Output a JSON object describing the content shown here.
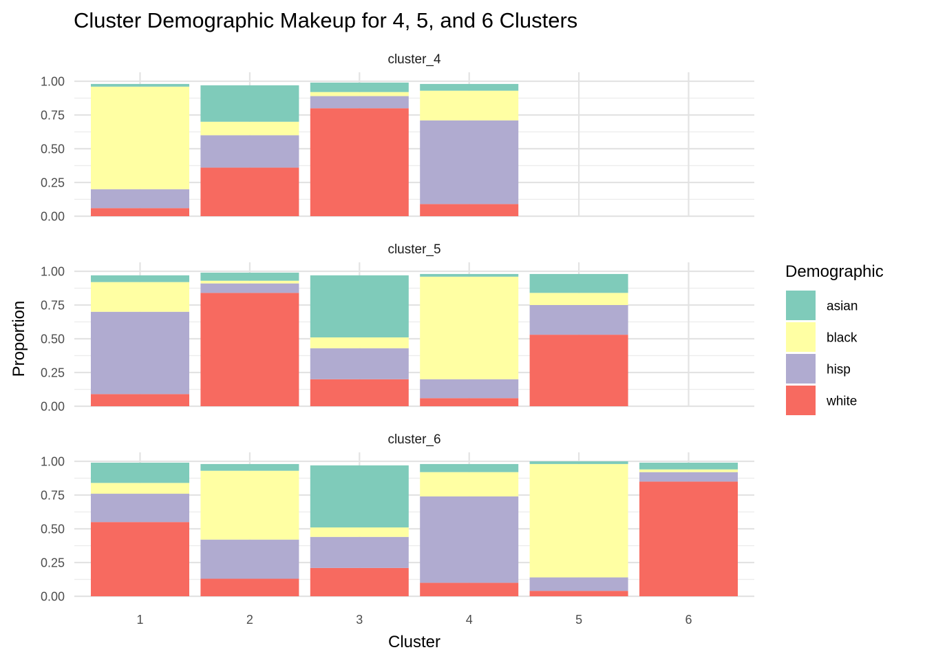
{
  "chart_data": {
    "type": "bar",
    "stacked": true,
    "title": "Cluster Demographic Makeup for 4, 5, and 6 Clusters",
    "xlabel": "Cluster",
    "ylabel": "Proportion",
    "categories": [
      "1",
      "2",
      "3",
      "4",
      "5",
      "6"
    ],
    "ylim": [
      0,
      1
    ],
    "yticks": [
      "0.00",
      "0.25",
      "0.50",
      "0.75",
      "1.00"
    ],
    "grid": true,
    "legend": {
      "title": "Demographic",
      "position": "right",
      "entries": [
        "asian",
        "black",
        "hisp",
        "white"
      ]
    },
    "colors": {
      "asian": "#7fcbba",
      "black": "#ffffa3",
      "hisp": "#b0abd0",
      "white": "#f76a60"
    },
    "panels": [
      {
        "strip": "cluster_4",
        "series": [
          {
            "name": "white",
            "values": [
              0.06,
              0.36,
              0.8,
              0.09,
              null,
              null
            ]
          },
          {
            "name": "hisp",
            "values": [
              0.14,
              0.24,
              0.09,
              0.62,
              null,
              null
            ]
          },
          {
            "name": "black",
            "values": [
              0.76,
              0.1,
              0.03,
              0.22,
              null,
              null
            ]
          },
          {
            "name": "asian",
            "values": [
              0.02,
              0.27,
              0.07,
              0.05,
              null,
              null
            ]
          }
        ]
      },
      {
        "strip": "cluster_5",
        "series": [
          {
            "name": "white",
            "values": [
              0.09,
              0.84,
              0.2,
              0.06,
              0.53,
              null
            ]
          },
          {
            "name": "hisp",
            "values": [
              0.61,
              0.07,
              0.23,
              0.14,
              0.22,
              null
            ]
          },
          {
            "name": "black",
            "values": [
              0.22,
              0.02,
              0.08,
              0.76,
              0.09,
              null
            ]
          },
          {
            "name": "asian",
            "values": [
              0.05,
              0.06,
              0.46,
              0.02,
              0.14,
              null
            ]
          }
        ]
      },
      {
        "strip": "cluster_6",
        "series": [
          {
            "name": "white",
            "values": [
              0.55,
              0.13,
              0.21,
              0.1,
              0.04,
              0.85
            ]
          },
          {
            "name": "hisp",
            "values": [
              0.21,
              0.29,
              0.23,
              0.64,
              0.1,
              0.07
            ]
          },
          {
            "name": "black",
            "values": [
              0.08,
              0.51,
              0.07,
              0.18,
              0.84,
              0.02
            ]
          },
          {
            "name": "asian",
            "values": [
              0.15,
              0.05,
              0.46,
              0.06,
              0.02,
              0.05
            ]
          }
        ]
      }
    ]
  }
}
